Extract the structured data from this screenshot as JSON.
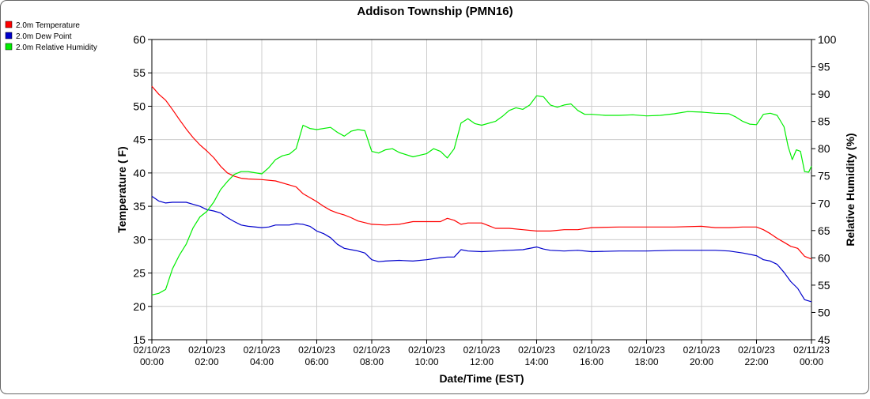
{
  "chart_data": {
    "type": "line",
    "title": "Addison Township (PMN16)",
    "xlabel": "Date/Time (EST)",
    "ylabel_left": "Temperature ( F)",
    "ylabel_right": "Relative Humidity (%)",
    "xlim": [
      0,
      24
    ],
    "ylim_left": [
      15,
      60
    ],
    "ylim_right": [
      45,
      100
    ],
    "grid": true,
    "legend_position": "top-left",
    "x_ticks": [
      {
        "x": 0,
        "date": "02/10/23",
        "time": "00:00"
      },
      {
        "x": 2,
        "date": "02/10/23",
        "time": "02:00"
      },
      {
        "x": 4,
        "date": "02/10/23",
        "time": "04:00"
      },
      {
        "x": 6,
        "date": "02/10/23",
        "time": "06:00"
      },
      {
        "x": 8,
        "date": "02/10/23",
        "time": "08:00"
      },
      {
        "x": 10,
        "date": "02/10/23",
        "time": "10:00"
      },
      {
        "x": 12,
        "date": "02/10/23",
        "time": "12:00"
      },
      {
        "x": 14,
        "date": "02/10/23",
        "time": "14:00"
      },
      {
        "x": 16,
        "date": "02/10/23",
        "time": "16:00"
      },
      {
        "x": 18,
        "date": "02/10/23",
        "time": "18:00"
      },
      {
        "x": 20,
        "date": "02/10/23",
        "time": "20:00"
      },
      {
        "x": 22,
        "date": "02/10/23",
        "time": "22:00"
      },
      {
        "x": 24,
        "date": "02/11/23",
        "time": "00:00"
      }
    ],
    "y_left_ticks": [
      15,
      20,
      25,
      30,
      35,
      40,
      45,
      50,
      55,
      60
    ],
    "y_right_ticks": [
      45,
      50,
      55,
      60,
      65,
      70,
      75,
      80,
      85,
      90,
      95,
      100
    ],
    "series": [
      {
        "name": "2.0m Temperature",
        "color": "#ff0000",
        "axis": "left",
        "points": [
          [
            0,
            53.0
          ],
          [
            0.25,
            51.8
          ],
          [
            0.5,
            50.9
          ],
          [
            0.75,
            49.5
          ],
          [
            1.0,
            48.0
          ],
          [
            1.25,
            46.6
          ],
          [
            1.5,
            45.3
          ],
          [
            1.75,
            44.2
          ],
          [
            2.0,
            43.3
          ],
          [
            2.25,
            42.3
          ],
          [
            2.5,
            41.0
          ],
          [
            2.75,
            40.0
          ],
          [
            3.0,
            39.5
          ],
          [
            3.25,
            39.2
          ],
          [
            3.5,
            39.1
          ],
          [
            4.0,
            39.0
          ],
          [
            4.5,
            38.8
          ],
          [
            5.0,
            38.2
          ],
          [
            5.25,
            37.9
          ],
          [
            5.5,
            36.9
          ],
          [
            5.75,
            36.3
          ],
          [
            6.0,
            35.7
          ],
          [
            6.25,
            35.0
          ],
          [
            6.5,
            34.4
          ],
          [
            6.75,
            34.0
          ],
          [
            7.0,
            33.7
          ],
          [
            7.25,
            33.3
          ],
          [
            7.5,
            32.8
          ],
          [
            8.0,
            32.3
          ],
          [
            8.5,
            32.2
          ],
          [
            9.0,
            32.3
          ],
          [
            9.5,
            32.7
          ],
          [
            10.0,
            32.7
          ],
          [
            10.5,
            32.7
          ],
          [
            10.75,
            33.2
          ],
          [
            11.0,
            32.9
          ],
          [
            11.25,
            32.3
          ],
          [
            11.5,
            32.5
          ],
          [
            12.0,
            32.5
          ],
          [
            12.25,
            32.1
          ],
          [
            12.5,
            31.7
          ],
          [
            13.0,
            31.7
          ],
          [
            13.5,
            31.5
          ],
          [
            14.0,
            31.3
          ],
          [
            14.5,
            31.3
          ],
          [
            15.0,
            31.5
          ],
          [
            15.5,
            31.5
          ],
          [
            16.0,
            31.8
          ],
          [
            17.0,
            31.9
          ],
          [
            18.0,
            31.9
          ],
          [
            19.0,
            31.9
          ],
          [
            20.0,
            32.0
          ],
          [
            20.5,
            31.8
          ],
          [
            21.0,
            31.8
          ],
          [
            21.5,
            31.9
          ],
          [
            22.0,
            31.9
          ],
          [
            22.25,
            31.5
          ],
          [
            22.5,
            30.9
          ],
          [
            22.75,
            30.2
          ],
          [
            23.0,
            29.6
          ],
          [
            23.25,
            29.0
          ],
          [
            23.5,
            28.7
          ],
          [
            23.75,
            27.5
          ],
          [
            24.0,
            27.1
          ]
        ]
      },
      {
        "name": "2.0m Dew Point",
        "color": "#0000cc",
        "axis": "left",
        "points": [
          [
            0,
            36.5
          ],
          [
            0.25,
            35.8
          ],
          [
            0.5,
            35.5
          ],
          [
            0.75,
            35.6
          ],
          [
            1.0,
            35.6
          ],
          [
            1.25,
            35.6
          ],
          [
            1.5,
            35.3
          ],
          [
            1.75,
            35.0
          ],
          [
            2.0,
            34.5
          ],
          [
            2.25,
            34.3
          ],
          [
            2.5,
            34.0
          ],
          [
            2.75,
            33.3
          ],
          [
            3.0,
            32.7
          ],
          [
            3.25,
            32.2
          ],
          [
            3.5,
            32.0
          ],
          [
            4.0,
            31.8
          ],
          [
            4.25,
            31.9
          ],
          [
            4.5,
            32.2
          ],
          [
            5.0,
            32.2
          ],
          [
            5.25,
            32.4
          ],
          [
            5.5,
            32.3
          ],
          [
            5.75,
            32.0
          ],
          [
            6.0,
            31.3
          ],
          [
            6.25,
            30.9
          ],
          [
            6.5,
            30.3
          ],
          [
            6.75,
            29.3
          ],
          [
            7.0,
            28.7
          ],
          [
            7.25,
            28.5
          ],
          [
            7.5,
            28.3
          ],
          [
            7.75,
            28.0
          ],
          [
            8.0,
            27.0
          ],
          [
            8.25,
            26.7
          ],
          [
            8.5,
            26.8
          ],
          [
            9.0,
            26.9
          ],
          [
            9.5,
            26.8
          ],
          [
            10.0,
            27.0
          ],
          [
            10.5,
            27.3
          ],
          [
            10.75,
            27.4
          ],
          [
            11.0,
            27.4
          ],
          [
            11.25,
            28.5
          ],
          [
            11.5,
            28.3
          ],
          [
            12.0,
            28.2
          ],
          [
            12.5,
            28.3
          ],
          [
            13.0,
            28.4
          ],
          [
            13.5,
            28.5
          ],
          [
            14.0,
            28.9
          ],
          [
            14.25,
            28.6
          ],
          [
            14.5,
            28.4
          ],
          [
            15.0,
            28.3
          ],
          [
            15.5,
            28.4
          ],
          [
            16.0,
            28.2
          ],
          [
            17.0,
            28.3
          ],
          [
            18.0,
            28.3
          ],
          [
            19.0,
            28.4
          ],
          [
            20.0,
            28.4
          ],
          [
            20.5,
            28.4
          ],
          [
            21.0,
            28.3
          ],
          [
            21.5,
            28.0
          ],
          [
            22.0,
            27.6
          ],
          [
            22.25,
            27.0
          ],
          [
            22.5,
            26.8
          ],
          [
            22.75,
            26.3
          ],
          [
            23.0,
            25.1
          ],
          [
            23.25,
            23.7
          ],
          [
            23.5,
            22.7
          ],
          [
            23.75,
            21.0
          ],
          [
            24.0,
            20.7
          ]
        ]
      },
      {
        "name": "2.0m Relative Humidity",
        "color": "#00ee00",
        "axis": "right",
        "points": [
          [
            0,
            53.2
          ],
          [
            0.25,
            53.5
          ],
          [
            0.5,
            54.2
          ],
          [
            0.75,
            58.0
          ],
          [
            1.0,
            60.5
          ],
          [
            1.25,
            62.5
          ],
          [
            1.5,
            65.5
          ],
          [
            1.75,
            67.5
          ],
          [
            2.0,
            68.5
          ],
          [
            2.25,
            70.2
          ],
          [
            2.5,
            72.5
          ],
          [
            2.75,
            74.0
          ],
          [
            3.0,
            75.3
          ],
          [
            3.25,
            75.8
          ],
          [
            3.5,
            75.8
          ],
          [
            3.75,
            75.6
          ],
          [
            4.0,
            75.4
          ],
          [
            4.25,
            76.5
          ],
          [
            4.5,
            78.0
          ],
          [
            4.75,
            78.7
          ],
          [
            5.0,
            79.0
          ],
          [
            5.25,
            80.0
          ],
          [
            5.5,
            84.3
          ],
          [
            5.75,
            83.7
          ],
          [
            6.0,
            83.5
          ],
          [
            6.5,
            83.9
          ],
          [
            6.75,
            83.0
          ],
          [
            7.0,
            82.3
          ],
          [
            7.25,
            83.2
          ],
          [
            7.5,
            83.5
          ],
          [
            7.75,
            83.3
          ],
          [
            8.0,
            79.5
          ],
          [
            8.25,
            79.2
          ],
          [
            8.5,
            79.8
          ],
          [
            8.75,
            80.0
          ],
          [
            9.0,
            79.3
          ],
          [
            9.5,
            78.5
          ],
          [
            10.0,
            79.1
          ],
          [
            10.25,
            80.0
          ],
          [
            10.5,
            79.5
          ],
          [
            10.75,
            78.3
          ],
          [
            11.0,
            80.0
          ],
          [
            11.25,
            84.7
          ],
          [
            11.5,
            85.5
          ],
          [
            11.75,
            84.6
          ],
          [
            12.0,
            84.3
          ],
          [
            12.5,
            85.0
          ],
          [
            12.75,
            85.9
          ],
          [
            13.0,
            87.0
          ],
          [
            13.25,
            87.5
          ],
          [
            13.5,
            87.2
          ],
          [
            13.75,
            88.0
          ],
          [
            14.0,
            89.7
          ],
          [
            14.25,
            89.5
          ],
          [
            14.5,
            88.0
          ],
          [
            14.75,
            87.6
          ],
          [
            15.0,
            88.0
          ],
          [
            15.25,
            88.2
          ],
          [
            15.5,
            87.0
          ],
          [
            15.75,
            86.3
          ],
          [
            16.0,
            86.3
          ],
          [
            16.5,
            86.1
          ],
          [
            17.0,
            86.1
          ],
          [
            17.5,
            86.2
          ],
          [
            18.0,
            86.0
          ],
          [
            18.5,
            86.1
          ],
          [
            19.0,
            86.4
          ],
          [
            19.5,
            86.8
          ],
          [
            20.0,
            86.7
          ],
          [
            20.5,
            86.5
          ],
          [
            21.0,
            86.4
          ],
          [
            21.25,
            85.8
          ],
          [
            21.5,
            85.0
          ],
          [
            21.75,
            84.5
          ],
          [
            22.0,
            84.4
          ],
          [
            22.25,
            86.3
          ],
          [
            22.5,
            86.5
          ],
          [
            22.75,
            86.1
          ],
          [
            23.0,
            84.0
          ],
          [
            23.15,
            80.4
          ],
          [
            23.3,
            78.0
          ],
          [
            23.45,
            79.8
          ],
          [
            23.6,
            79.5
          ],
          [
            23.75,
            75.8
          ],
          [
            23.9,
            75.7
          ],
          [
            24.0,
            76.8
          ]
        ]
      }
    ]
  }
}
